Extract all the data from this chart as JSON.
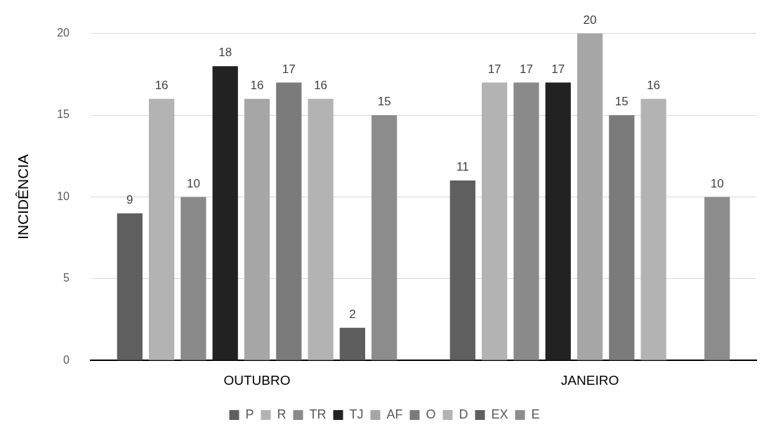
{
  "chart_data": {
    "type": "bar",
    "ylabel": "INCIDÊNCIA",
    "categories": [
      "OUTUBRO",
      "JANEIRO"
    ],
    "series": [
      {
        "name": "P",
        "color": "#5f5f5f",
        "values": [
          9,
          11
        ]
      },
      {
        "name": "R",
        "color": "#b3b3b3",
        "values": [
          16,
          17
        ]
      },
      {
        "name": "TR",
        "color": "#8a8a8a",
        "values": [
          10,
          17
        ]
      },
      {
        "name": "TJ",
        "color": "#222222",
        "values": [
          18,
          17
        ]
      },
      {
        "name": "AF",
        "color": "#a6a6a6",
        "values": [
          16,
          20
        ]
      },
      {
        "name": "O",
        "color": "#7b7b7b",
        "values": [
          17,
          15
        ]
      },
      {
        "name": "D",
        "color": "#b3b3b3",
        "values": [
          16,
          16
        ]
      },
      {
        "name": "EX",
        "color": "#5e5e5e",
        "values": [
          2,
          null
        ]
      },
      {
        "name": "E",
        "color": "#8c8c8c",
        "values": [
          15,
          10
        ]
      }
    ],
    "ylim": [
      0,
      20
    ],
    "yticks": [
      0,
      5,
      10,
      15,
      20
    ],
    "grid": "y",
    "legend": "bottom",
    "data_labels": true
  }
}
